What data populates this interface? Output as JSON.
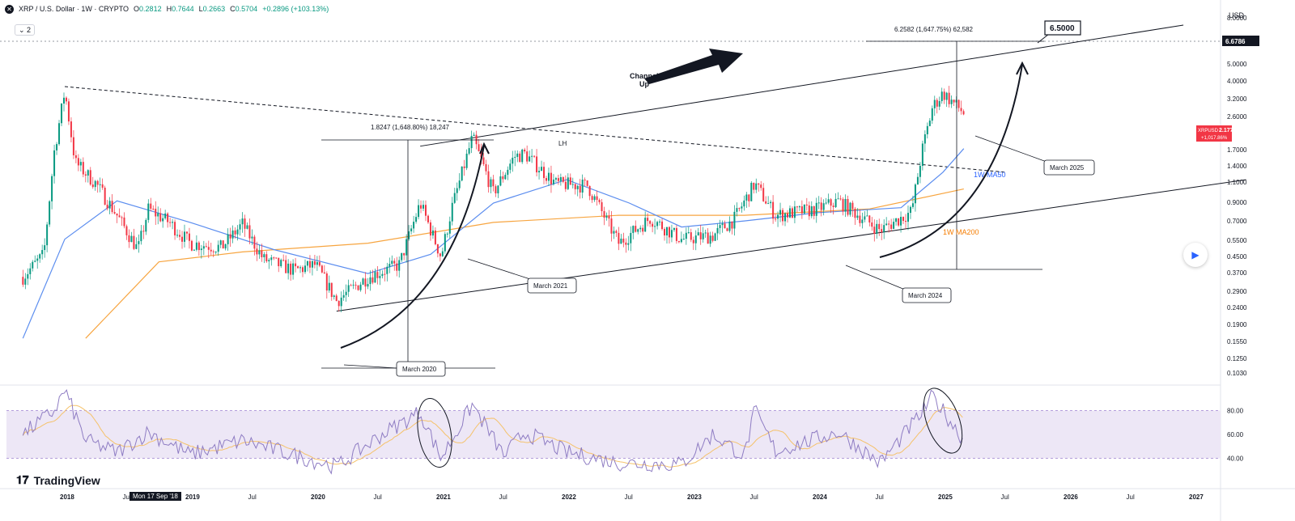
{
  "header": {
    "symbol_icon": "xrp-icon",
    "title": "XRP / U.S. Dollar · 1W · CRYPTO",
    "ohlc": [
      {
        "label": "O",
        "value": "0.2812"
      },
      {
        "label": "H",
        "value": "0.7644"
      },
      {
        "label": "L",
        "value": "0.2663"
      },
      {
        "label": "C",
        "value": "0.5704"
      }
    ],
    "change": "+0.2896 (+103.13%)",
    "sub_indicator": "2"
  },
  "price_axis": {
    "currency": "USD",
    "ticks": [
      "8.0000",
      "5.0000",
      "4.0000",
      "3.2000",
      "2.6000",
      "1.7000",
      "1.4000",
      "1.1000",
      "0.9000",
      "0.7000",
      "0.5500",
      "0.4500",
      "0.3700",
      "0.2900",
      "0.2400",
      "0.1900",
      "0.1550",
      "0.1250",
      "0.1030"
    ],
    "highlight_label": "6.6786",
    "last_price_symbol": "XRPUSD",
    "last_price": "2.1777",
    "last_price_change": "+1,017.86%"
  },
  "rsi_axis": {
    "ticks": [
      "80.00",
      "60.00",
      "40.00"
    ]
  },
  "time_axis": {
    "labels": [
      "2018",
      "Jul",
      "2019",
      "Jul",
      "2020",
      "Jul",
      "2021",
      "Jul",
      "2022",
      "Jul",
      "2023",
      "Jul",
      "2024",
      "Jul",
      "2025",
      "Jul",
      "2026",
      "Jul",
      "2027"
    ],
    "hover_date": "Mon 17 Sep '18"
  },
  "annotations": {
    "target_box": "6.5000",
    "measure_top": "6.2582 (1,647.75%) 62,582",
    "measure_2021": "1.8247 (1,648.80%) 18,247",
    "lh": "LH",
    "channel": [
      "Channel",
      "Up"
    ],
    "ma50": "1W MA50",
    "ma200": "1W MA200",
    "callouts": [
      "March 2020",
      "March 2021",
      "March 2024",
      "March 2025"
    ]
  },
  "colors": {
    "up": "#089981",
    "down": "#f23645",
    "ma50": "#5b8def",
    "ma200": "#f7a540",
    "rsi": "#8e7cc3",
    "rsi_band": "#ede7f6",
    "ma50_label": "#2962ff",
    "ma200_label": "#f57c00",
    "price_tag": "#f23645"
  },
  "branding": {
    "logo_icon": "tradingview-logo-icon",
    "logo_text": "TradingView"
  },
  "chart_data": {
    "type": "candlestick",
    "x_axis": [
      "2018",
      "Jul",
      "2019",
      "Jul",
      "2020",
      "Jul",
      "2021",
      "Jul",
      "2022",
      "Jul",
      "2023",
      "Jul",
      "2024",
      "Jul",
      "2025",
      "Jul",
      "2026",
      "Jul",
      "2027"
    ],
    "y_scale": "log",
    "ylim": [
      0.1,
      8.0
    ],
    "price_path": [
      [
        "2017-09",
        0.2
      ],
      [
        "2017-11",
        0.28
      ],
      [
        "2017-12",
        1.3
      ],
      [
        "2018-01",
        3.2
      ],
      [
        "2018-02",
        1.1
      ],
      [
        "2018-04",
        0.8
      ],
      [
        "2018-06",
        0.5
      ],
      [
        "2018-08",
        0.3
      ],
      [
        "2018-09",
        0.55
      ],
      [
        "2018-11",
        0.45
      ],
      [
        "2019-01",
        0.33
      ],
      [
        "2019-04",
        0.31
      ],
      [
        "2019-06",
        0.44
      ],
      [
        "2019-08",
        0.26
      ],
      [
        "2019-11",
        0.22
      ],
      [
        "2020-01",
        0.24
      ],
      [
        "2020-03",
        0.14
      ],
      [
        "2020-06",
        0.2
      ],
      [
        "2020-09",
        0.24
      ],
      [
        "2020-11",
        0.6
      ],
      [
        "2021-01",
        0.27
      ],
      [
        "2021-02",
        0.55
      ],
      [
        "2021-04",
        1.6
      ],
      [
        "2021-06",
        0.7
      ],
      [
        "2021-08",
        1.2
      ],
      [
        "2021-09",
        1.25
      ],
      [
        "2021-12",
        0.8
      ],
      [
        "2022-03",
        0.78
      ],
      [
        "2022-06",
        0.33
      ],
      [
        "2022-09",
        0.48
      ],
      [
        "2022-12",
        0.35
      ],
      [
        "2023-03",
        0.37
      ],
      [
        "2023-05",
        0.47
      ],
      [
        "2023-07",
        0.8
      ],
      [
        "2023-09",
        0.5
      ],
      [
        "2024-01",
        0.55
      ],
      [
        "2024-03",
        0.62
      ],
      [
        "2024-07",
        0.4
      ],
      [
        "2024-10",
        0.53
      ],
      [
        "2024-11",
        1.3
      ],
      [
        "2024-12",
        2.5
      ],
      [
        "2025-01",
        3.1
      ],
      [
        "2025-03",
        2.3
      ]
    ],
    "ma50_path": [
      [
        "2017-09",
        0.08
      ],
      [
        "2018-01",
        0.35
      ],
      [
        "2018-06",
        0.62
      ],
      [
        "2019-01",
        0.45
      ],
      [
        "2019-09",
        0.3
      ],
      [
        "2020-06",
        0.21
      ],
      [
        "2020-12",
        0.28
      ],
      [
        "2021-06",
        0.6
      ],
      [
        "2022-01",
        0.85
      ],
      [
        "2022-07",
        0.6
      ],
      [
        "2022-12",
        0.42
      ],
      [
        "2023-06",
        0.46
      ],
      [
        "2024-01",
        0.52
      ],
      [
        "2024-09",
        0.56
      ],
      [
        "2025-01",
        0.95
      ],
      [
        "2025-03",
        1.35
      ]
    ],
    "ma200_path": [
      [
        "2018-03",
        0.08
      ],
      [
        "2018-10",
        0.25
      ],
      [
        "2019-06",
        0.29
      ],
      [
        "2020-06",
        0.33
      ],
      [
        "2021-06",
        0.45
      ],
      [
        "2022-06",
        0.5
      ],
      [
        "2023-06",
        0.5
      ],
      [
        "2024-06",
        0.55
      ],
      [
        "2025-03",
        0.74
      ]
    ],
    "rsi_path": [
      [
        "2017-09",
        60
      ],
      [
        "2017-12",
        80
      ],
      [
        "2018-01",
        97
      ],
      [
        "2018-03",
        55
      ],
      [
        "2018-06",
        45
      ],
      [
        "2018-09",
        62
      ],
      [
        "2019-01",
        43
      ],
      [
        "2019-06",
        55
      ],
      [
        "2019-12",
        40
      ],
      [
        "2020-03",
        33
      ],
      [
        "2020-07",
        58
      ],
      [
        "2020-11",
        79
      ],
      [
        "2021-01",
        40
      ],
      [
        "2021-04",
        85
      ],
      [
        "2021-07",
        42
      ],
      [
        "2021-09",
        62
      ],
      [
        "2022-01",
        45
      ],
      [
        "2022-06",
        36
      ],
      [
        "2022-12",
        35
      ],
      [
        "2023-03",
        60
      ],
      [
        "2023-06",
        42
      ],
      [
        "2023-07",
        80
      ],
      [
        "2023-09",
        46
      ],
      [
        "2024-03",
        62
      ],
      [
        "2024-07",
        36
      ],
      [
        "2024-11",
        78
      ],
      [
        "2024-12",
        92
      ],
      [
        "2025-01",
        80
      ],
      [
        "2025-03",
        55
      ]
    ],
    "rsi_bands": [
      40,
      80
    ],
    "trendlines": {
      "channel_upper": [
        [
          "2020-11",
          1.4
        ],
        [
          "2026-12",
          8.5
        ]
      ],
      "channel_lower": [
        [
          "2020-03",
          0.12
        ],
        [
          "2027-06",
          0.85
        ]
      ],
      "lower_highs": [
        [
          "2018-01",
          3.4
        ],
        [
          "2025-07",
          0.95
        ]
      ]
    },
    "projection": {
      "from": [
        "2024-07",
        0.4
      ],
      "to": [
        "2025-06",
        5.0
      ],
      "target": 6.5
    }
  }
}
